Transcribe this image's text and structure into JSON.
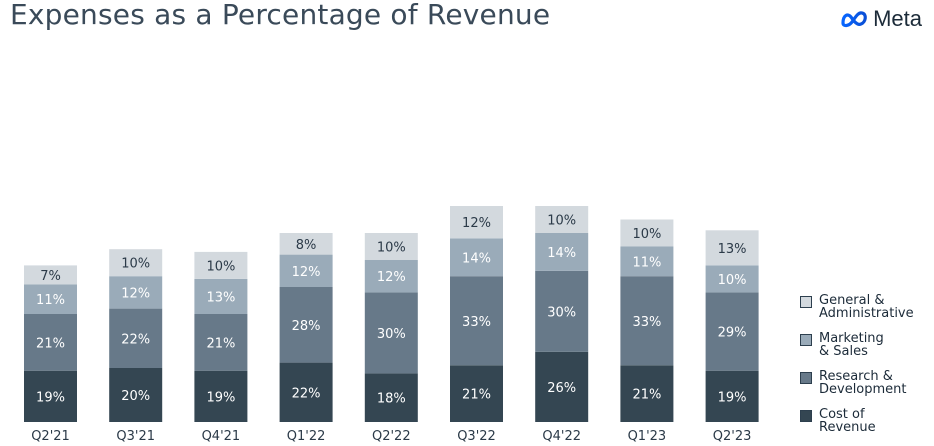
{
  "header": {
    "title": "Expenses as a Percentage of Revenue",
    "logo_text": "Meta"
  },
  "chart_data": {
    "type": "bar",
    "stacked": true,
    "categories": [
      "Q2'21",
      "Q3'21",
      "Q4'21",
      "Q1'22",
      "Q2'22",
      "Q3'22",
      "Q4'22",
      "Q1'23",
      "Q2'23"
    ],
    "series": [
      {
        "name": "Cost of Revenue",
        "values": [
          19,
          20,
          19,
          22,
          18,
          21,
          26,
          21,
          19
        ],
        "color": "#344652",
        "label_color": "#ffffff"
      },
      {
        "name": "Research & Development",
        "values": [
          21,
          22,
          21,
          28,
          30,
          33,
          30,
          33,
          29
        ],
        "color": "#677989",
        "label_color": "#ffffff"
      },
      {
        "name": "Marketing & Sales",
        "values": [
          11,
          12,
          13,
          12,
          12,
          14,
          14,
          11,
          10
        ],
        "color": "#9aabb9",
        "label_color": "#ffffff"
      },
      {
        "name": "General & Administrative",
        "values": [
          7,
          10,
          10,
          8,
          10,
          12,
          10,
          10,
          13
        ],
        "color": "#d3d9de",
        "label_color": "#2b3a48"
      }
    ],
    "value_suffix": "%",
    "legend": {
      "placement": "right",
      "items": [
        {
          "line1": "General &",
          "line2": "Administrative",
          "color": "#d3d9de"
        },
        {
          "line1": "Marketing",
          "line2": "& Sales",
          "color": "#9aabb9"
        },
        {
          "line1": "Research &",
          "line2": "Development",
          "color": "#677989"
        },
        {
          "line1": "Cost of",
          "line2": "Revenue",
          "color": "#344652"
        }
      ]
    },
    "grid": false
  }
}
